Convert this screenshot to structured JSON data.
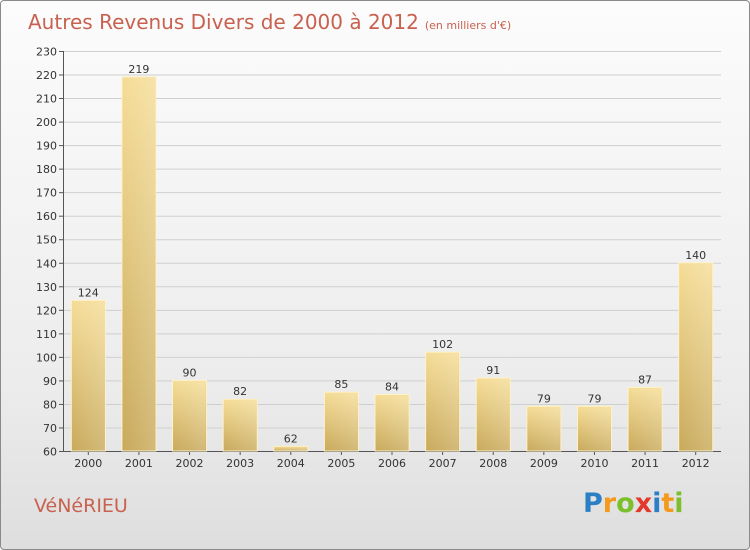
{
  "chart_data": {
    "type": "bar",
    "title": "Autres Revenus Divers de 2000 à 2012",
    "subtitle": "(en milliers d'€)",
    "categories": [
      "2000",
      "2001",
      "2002",
      "2003",
      "2004",
      "2005",
      "2006",
      "2007",
      "2008",
      "2009",
      "2010",
      "2011",
      "2012"
    ],
    "values": [
      124,
      219,
      90,
      82,
      62,
      85,
      84,
      102,
      91,
      79,
      79,
      87,
      140
    ],
    "ylim": [
      60,
      230
    ],
    "yticks": [
      60,
      70,
      80,
      90,
      100,
      110,
      120,
      130,
      140,
      150,
      160,
      170,
      180,
      190,
      200,
      210,
      220,
      230
    ],
    "grid": true,
    "bar_color": "#e8cf86"
  },
  "footer": {
    "place_name": "VéNéRIEU",
    "brand": "Proxiti",
    "brand_letters": [
      {
        "ch": "P",
        "color": "#2b7fc4"
      },
      {
        "ch": "r",
        "color": "#f39a1e"
      },
      {
        "ch": "o",
        "color": "#7bbf2a"
      },
      {
        "ch": "x",
        "color": "#e2392c"
      },
      {
        "ch": "i",
        "color": "#2b7fc4"
      },
      {
        "ch": "t",
        "color": "#f39a1e"
      },
      {
        "ch": "i",
        "color": "#7bbf2a"
      }
    ]
  }
}
